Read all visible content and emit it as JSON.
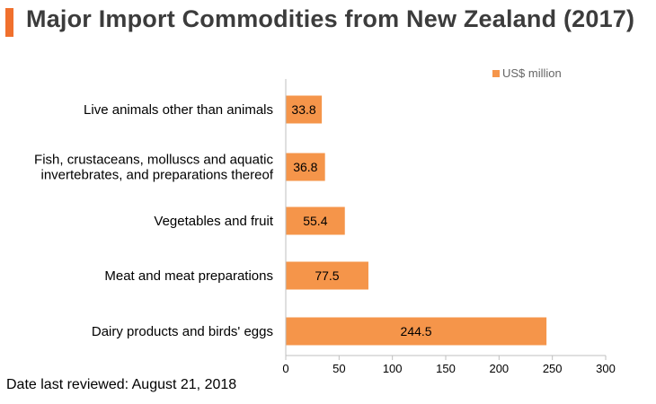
{
  "title": "Major Import Commodities from New Zealand (2017)",
  "footer": "Date last reviewed: August 21, 2018",
  "colors": {
    "accent": "#f0702d",
    "bar": "#f5954a",
    "axis": "#bfbfbf"
  },
  "chart_data": {
    "type": "bar",
    "orientation": "horizontal",
    "title": "Major Import Commodities from New Zealand (2017)",
    "categories": [
      [
        "Live animals other than animals"
      ],
      [
        "Fish, crustaceans, molluscs and aquatic",
        "invertebrates, and preparations thereof"
      ],
      [
        "Vegetables and fruit"
      ],
      [
        "Meat and meat preparations"
      ],
      [
        "Dairy products and birds' eggs"
      ]
    ],
    "series": [
      {
        "name": "US$ million",
        "values": [
          33.8,
          36.8,
          55.4,
          77.5,
          244.5
        ]
      }
    ],
    "value_labels": [
      "33.8",
      "36.8",
      "55.4",
      "77.5",
      "244.5"
    ],
    "xlim": [
      0,
      300
    ],
    "xticks": [
      0,
      50,
      100,
      150,
      200,
      250,
      300
    ],
    "xlabel": "",
    "ylabel": "",
    "grid": false,
    "legend": "top-right"
  }
}
